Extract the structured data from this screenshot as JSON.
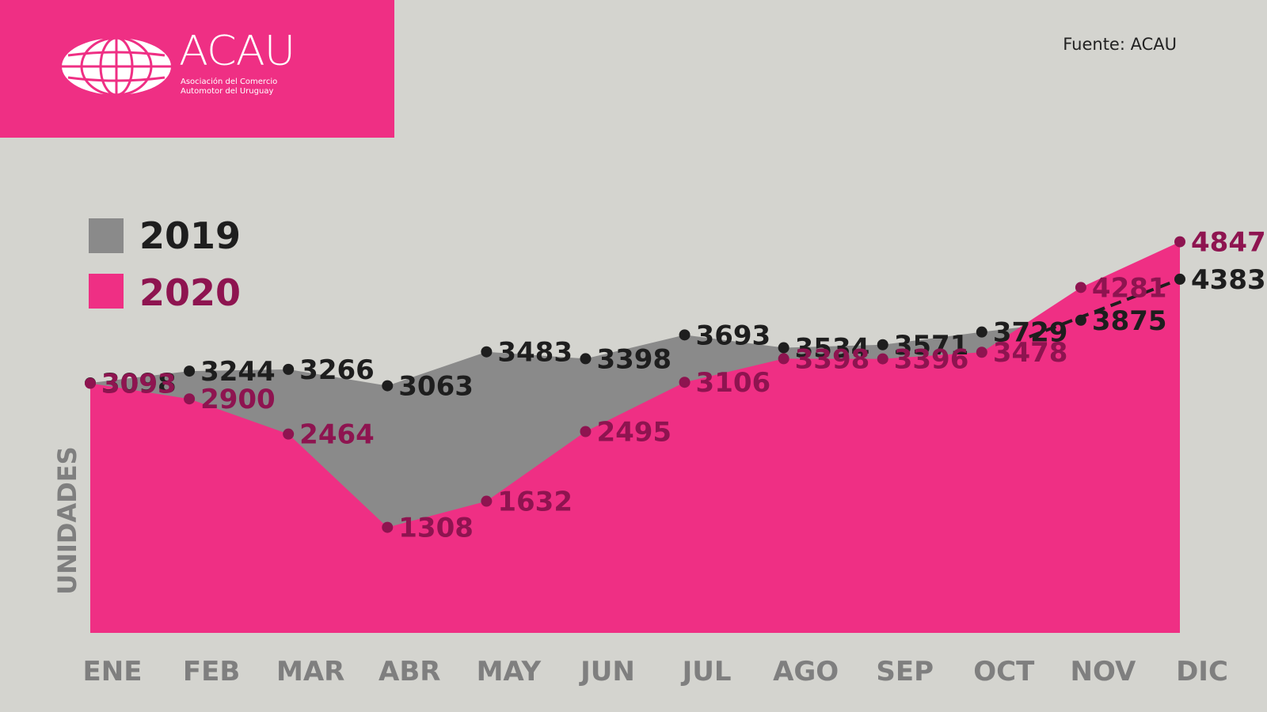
{
  "header": {
    "logo_title": "ACAU",
    "logo_subtitle_line1": "Asociación del Comercio",
    "logo_subtitle_line2": "Automotor del Uruguay",
    "source": "Fuente: ACAU"
  },
  "colors": {
    "pink": "#ef2f84",
    "gray_area": "#8a8a8a",
    "label_2019": "#1e1e1e",
    "label_2020": "#8e1450",
    "axis_text": "#7f7f7f",
    "background": "#d4d4cf"
  },
  "chart_data": {
    "type": "area",
    "categories": [
      "ENE",
      "FEB",
      "MAR",
      "ABR",
      "MAY",
      "JUN",
      "JUL",
      "AGO",
      "SEP",
      "OCT",
      "NOV",
      "DIC"
    ],
    "ylabel": "UNIDADES",
    "ylim": [
      0,
      5000
    ],
    "grid": false,
    "legend_position": "top-left",
    "series": [
      {
        "name": "2019",
        "values": [
          3098,
          3244,
          3266,
          3063,
          3483,
          3398,
          3693,
          3534,
          3571,
          3729,
          3875,
          4383
        ]
      },
      {
        "name": "2020",
        "values": [
          3093,
          2900,
          2464,
          1308,
          1632,
          2495,
          3106,
          3398,
          3396,
          3478,
          4281,
          4847
        ]
      }
    ]
  }
}
